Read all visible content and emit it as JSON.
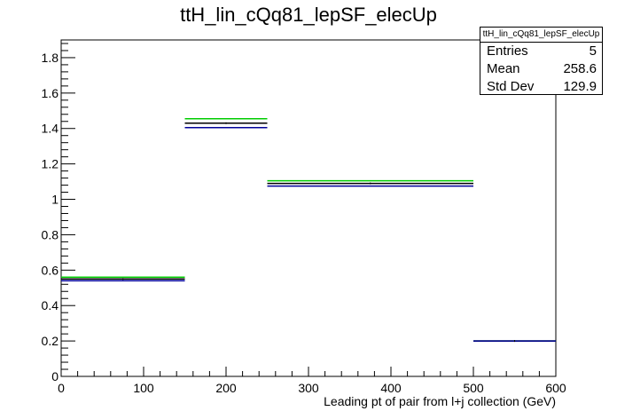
{
  "chart_data": {
    "type": "histogram",
    "title": "ttH_lin_cQq81_lepSF_elecUp",
    "xlabel": "Leading pt of pair from l+j collection (GeV)",
    "ylabel": "",
    "xlim": [
      0,
      600
    ],
    "ylim": [
      0,
      1.9
    ],
    "xticks": [
      "0",
      "100",
      "200",
      "300",
      "400",
      "500",
      "600"
    ],
    "yticks": [
      "0",
      "0.2",
      "0.4",
      "0.6",
      "0.8",
      "1",
      "1.2",
      "1.4",
      "1.6",
      "1.8"
    ],
    "bins": [
      [
        0,
        150
      ],
      [
        150,
        250
      ],
      [
        250,
        500
      ],
      [
        500,
        600
      ]
    ],
    "series": [
      {
        "color": "#00cc00",
        "values": [
          0.56,
          1.455,
          1.105,
          0.2
        ]
      },
      {
        "color": "#000000",
        "values": [
          0.55,
          1.43,
          1.09,
          0.2
        ]
      },
      {
        "color": "#000099",
        "values": [
          0.54,
          1.405,
          1.075,
          0.2
        ]
      }
    ],
    "stats": {
      "name": "ttH_lin_cQq81_lepSF_elecUp",
      "rows": [
        {
          "label": "Entries",
          "value": "5"
        },
        {
          "label": "Mean",
          "value": "258.6"
        },
        {
          "label": "Std Dev",
          "value": "129.9"
        }
      ]
    }
  }
}
